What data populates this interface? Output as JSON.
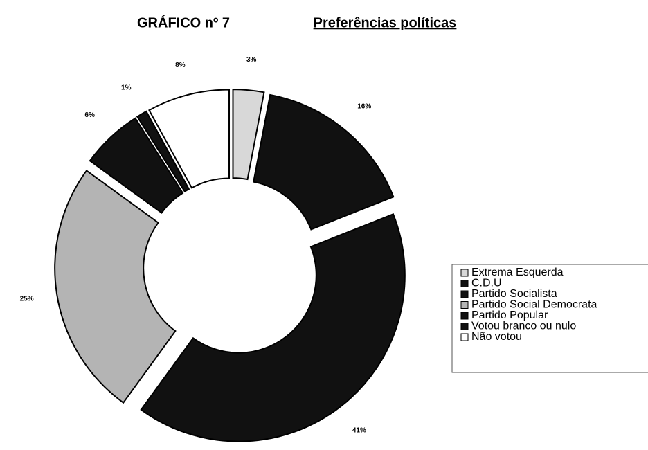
{
  "chart_data": {
    "type": "donut",
    "title": "GRÁFICO nº 7",
    "subtitle": "Preferências políticas",
    "categories": [
      "Extrema Esquerda",
      "C.D.U",
      "Partido Socialista",
      "Partido Social Democrata",
      "Partido Popular",
      "Votou branco ou nulo",
      "Não votou"
    ],
    "values": [
      3,
      16,
      41,
      25,
      6,
      1,
      8
    ],
    "value_labels": [
      "3%",
      "16%",
      "41%",
      "25%",
      "6%",
      "1%",
      "8%"
    ],
    "colors": [
      "#d8d8d8",
      "#111111",
      "#111111",
      "#b4b4b4",
      "#111111",
      "#111111",
      "#ffffff"
    ],
    "legend": "right"
  }
}
